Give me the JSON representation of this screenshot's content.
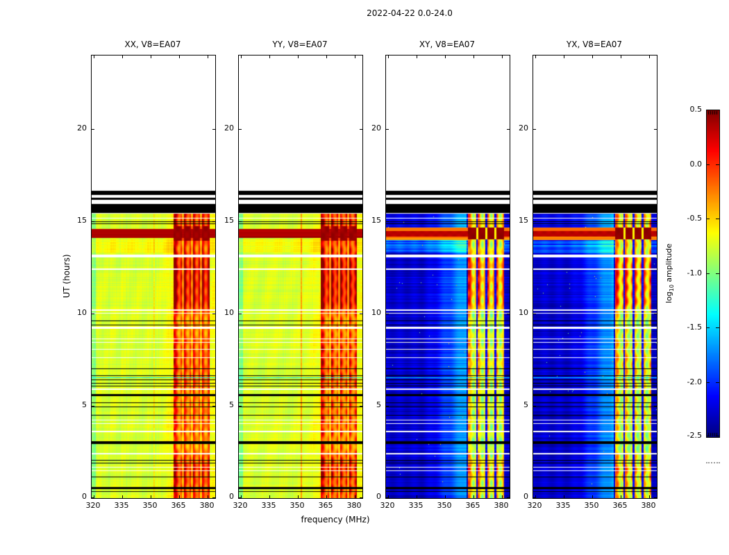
{
  "figure": {
    "title": "2022-04-22 0.0-24.0"
  },
  "axes": {
    "xlabel": "frequency (MHz)",
    "ylabel": "UT (hours)",
    "xticks": [
      320,
      335,
      350,
      365,
      380
    ],
    "yticks": [
      0,
      5,
      10,
      15,
      20
    ],
    "xlim": [
      319,
      384
    ],
    "ylim": [
      0,
      24
    ]
  },
  "panels": [
    {
      "title": "XX, V8=EA07",
      "polarization": "XX",
      "type": "parallel"
    },
    {
      "title": "YY, V8=EA07",
      "polarization": "YY",
      "type": "parallel"
    },
    {
      "title": "XY, V8=EA07",
      "polarization": "XY",
      "type": "cross"
    },
    {
      "title": "YX, V8=EA07",
      "polarization": "YX",
      "type": "cross"
    }
  ],
  "colorbar": {
    "label_prefix": "log",
    "label_sub": "10",
    "label_suffix": " amplitude",
    "tick_labels": [
      "0.5",
      "0.0",
      "-0.5",
      "-1.0",
      "-1.5",
      "-2.0",
      "-2.5"
    ],
    "tick_values": [
      0.5,
      0.0,
      -0.5,
      -1.0,
      -1.5,
      -2.0,
      -2.5
    ],
    "vmin": -2.5,
    "vmax": 0.5,
    "colormap": "jet"
  },
  "chart_data": {
    "type": "heatmap",
    "title": "2022-04-22 0.0-24.0",
    "xlabel": "frequency (MHz)",
    "ylabel": "UT (hours)",
    "x_range_mhz": [
      319,
      384
    ],
    "y_range_hours": [
      0,
      24
    ],
    "panels": [
      "XX, V8=EA07",
      "YY, V8=EA07",
      "XY, V8=EA07",
      "YX, V8=EA07"
    ],
    "color_scale": {
      "label": "log10 amplitude",
      "min": -2.5,
      "max": 0.5,
      "colormap": "jet"
    },
    "features": {
      "no_data_above_hour": 16.66,
      "data_top_hour": 15.42,
      "flagged_black_bands_hours": [
        [
          15.46,
          15.95
        ],
        [
          16.17,
          16.29
        ],
        [
          16.44,
          16.66
        ]
      ],
      "solar_burst_hours": [
        14.1,
        14.6
      ],
      "rfi_band_mhz": [
        362,
        381.2
      ],
      "rfi_gaps_mhz": [
        366.9,
        371.7,
        376.5
      ],
      "narrow_rfi_line_mhz": 352,
      "base_log10_amp_parallel": -0.74,
      "base_log10_amp_cross": -2.27,
      "black_line_hours": [
        [
          15.02,
          1
        ],
        [
          14.88,
          1
        ],
        [
          9.62,
          1
        ],
        [
          9.42,
          1
        ],
        [
          7.02,
          1
        ],
        [
          6.66,
          1
        ],
        [
          6.42,
          1
        ],
        [
          6.26,
          1
        ],
        [
          6.1,
          1
        ],
        [
          5.62,
          3
        ],
        [
          5.2,
          1
        ],
        [
          4.98,
          1
        ],
        [
          4.5,
          1
        ],
        [
          3.02,
          4
        ],
        [
          2.06,
          1
        ],
        [
          1.93,
          1
        ],
        [
          1.15,
          1
        ],
        [
          0.58,
          3
        ],
        [
          0.36,
          1
        ]
      ],
      "white_line_hours": [
        [
          15.2,
          1
        ],
        [
          13.12,
          4
        ],
        [
          12.42,
          2
        ],
        [
          10.2,
          2
        ],
        [
          10.06,
          1
        ],
        [
          9.26,
          3
        ],
        [
          8.66,
          1
        ],
        [
          8.47,
          1
        ],
        [
          8.1,
          1
        ],
        [
          7.62,
          1
        ],
        [
          5.92,
          2
        ],
        [
          4.26,
          1
        ],
        [
          4.06,
          1
        ],
        [
          3.62,
          2
        ],
        [
          2.42,
          2
        ],
        [
          1.7,
          1
        ],
        [
          1.5,
          1
        ]
      ],
      "cyan_line_hours": [
        6.54
      ],
      "intensity_profile": [
        [
          0,
          0.7
        ],
        [
          0.8,
          0.75
        ],
        [
          1.6,
          0.85
        ],
        [
          2.2,
          0.7
        ],
        [
          2.8,
          0.5
        ],
        [
          3.5,
          0.6
        ],
        [
          4.5,
          0.65
        ],
        [
          5.5,
          0.6
        ],
        [
          6.5,
          0.7
        ],
        [
          7.5,
          0.72
        ],
        [
          8.5,
          0.65
        ],
        [
          9.3,
          0.55
        ],
        [
          10.0,
          0.6
        ],
        [
          10.5,
          0.95
        ],
        [
          11.5,
          1.0
        ],
        [
          12.6,
          1.0
        ],
        [
          13.0,
          0.9
        ],
        [
          13.6,
          0.7
        ],
        [
          14.0,
          0.8
        ],
        [
          14.8,
          0.85
        ],
        [
          15.3,
          0.8
        ]
      ]
    }
  }
}
